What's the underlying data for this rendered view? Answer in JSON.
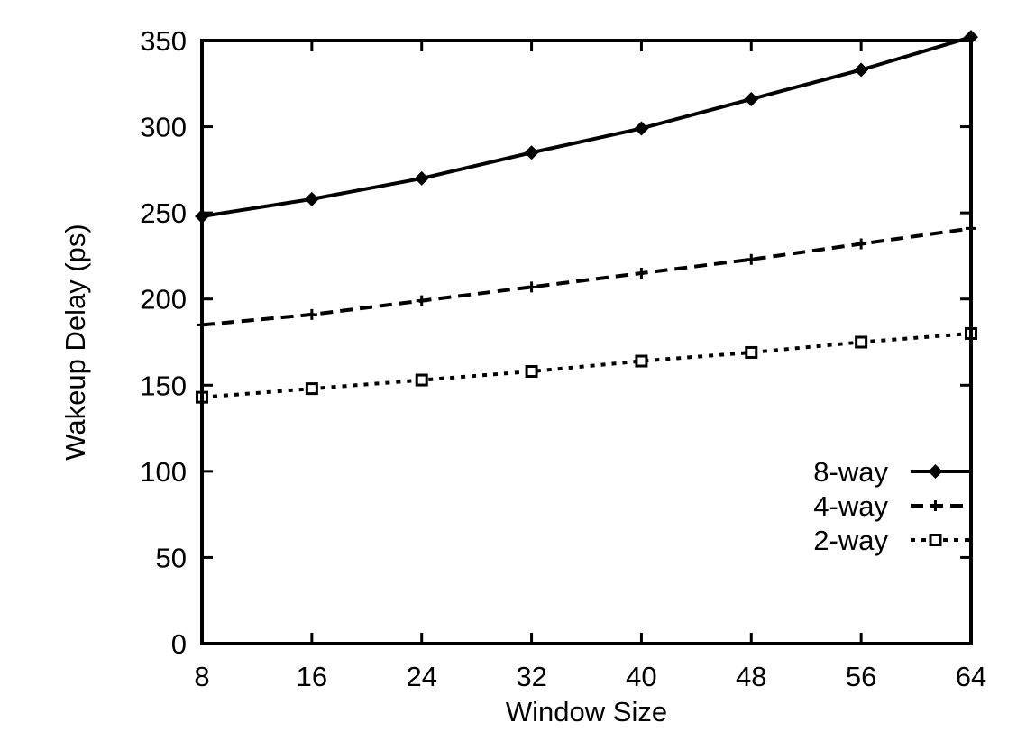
{
  "chart_data": {
    "type": "line",
    "title": "",
    "xlabel": "Window Size",
    "ylabel": "Wakeup Delay (ps)",
    "x": [
      8,
      16,
      24,
      32,
      40,
      48,
      56,
      64
    ],
    "xlim": [
      8,
      64
    ],
    "ylim": [
      0,
      350
    ],
    "xticks": [
      "8",
      "16",
      "24",
      "32",
      "40",
      "48",
      "56",
      "64"
    ],
    "yticks": [
      "0",
      "50",
      "100",
      "150",
      "200",
      "250",
      "300",
      "350"
    ],
    "grid": false,
    "legend_position": "bottom-right",
    "series": [
      {
        "name": "8-way",
        "marker": "diamond",
        "dash": "solid",
        "color": "#000000",
        "values": [
          248,
          258,
          270,
          285,
          299,
          316,
          333,
          352
        ]
      },
      {
        "name": "4-way",
        "marker": "plus",
        "dash": "dashed",
        "color": "#000000",
        "values": [
          185,
          191,
          199,
          207,
          215,
          223,
          232,
          241
        ]
      },
      {
        "name": "2-way",
        "marker": "square",
        "dash": "dotted",
        "color": "#000000",
        "values": [
          143,
          148,
          153,
          158,
          164,
          169,
          175,
          180
        ]
      }
    ]
  }
}
